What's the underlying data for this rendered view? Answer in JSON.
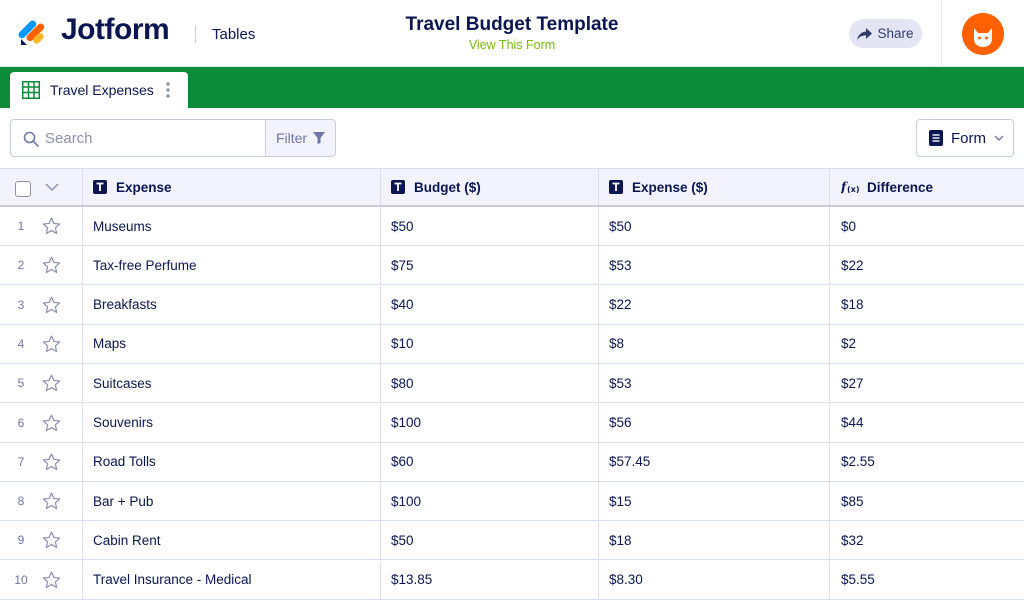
{
  "header": {
    "brand": "Jotform",
    "product": "Tables",
    "form_title": "Travel Budget Template",
    "form_link": "View This Form",
    "share_label": "Share"
  },
  "tabs": [
    {
      "label": "Travel Expenses",
      "icon": "table-grid-icon"
    }
  ],
  "toolbar": {
    "search_placeholder": "Search",
    "filter_label": "Filter",
    "form_label": "Form"
  },
  "table": {
    "columns": [
      {
        "label": "Expense",
        "type": "text"
      },
      {
        "label": "Budget ($)",
        "type": "text"
      },
      {
        "label": "Expense ($)",
        "type": "text"
      },
      {
        "label": "Difference",
        "type": "formula"
      }
    ],
    "rows": [
      {
        "num": "1",
        "expense": "Museums",
        "budget": "$50",
        "spent": "$50",
        "difference": "$0"
      },
      {
        "num": "2",
        "expense": "Tax-free Perfume",
        "budget": "$75",
        "spent": "$53",
        "difference": "$22"
      },
      {
        "num": "3",
        "expense": "Breakfasts",
        "budget": "$40",
        "spent": "$22",
        "difference": "$18"
      },
      {
        "num": "4",
        "expense": "Maps",
        "budget": "$10",
        "spent": "$8",
        "difference": "$2"
      },
      {
        "num": "5",
        "expense": "Suitcases",
        "budget": "$80",
        "spent": "$53",
        "difference": "$27"
      },
      {
        "num": "6",
        "expense": "Souvenirs",
        "budget": "$100",
        "spent": "$56",
        "difference": "$44"
      },
      {
        "num": "7",
        "expense": "Road Tolls",
        "budget": "$60",
        "spent": "$57.45",
        "difference": "$2.55"
      },
      {
        "num": "8",
        "expense": "Bar + Pub",
        "budget": "$100",
        "spent": "$15",
        "difference": "$85"
      },
      {
        "num": "9",
        "expense": "Cabin Rent",
        "budget": "$50",
        "spent": "$18",
        "difference": "$32"
      },
      {
        "num": "10",
        "expense": "Travel Insurance - Medical",
        "budget": "$13.85",
        "spent": "$8.30",
        "difference": "$5.55"
      }
    ]
  },
  "colors": {
    "navy": "#0a1551",
    "green_bar": "#0c8c3b",
    "link_green": "#78bb07",
    "avatar_orange": "#ff6100"
  }
}
